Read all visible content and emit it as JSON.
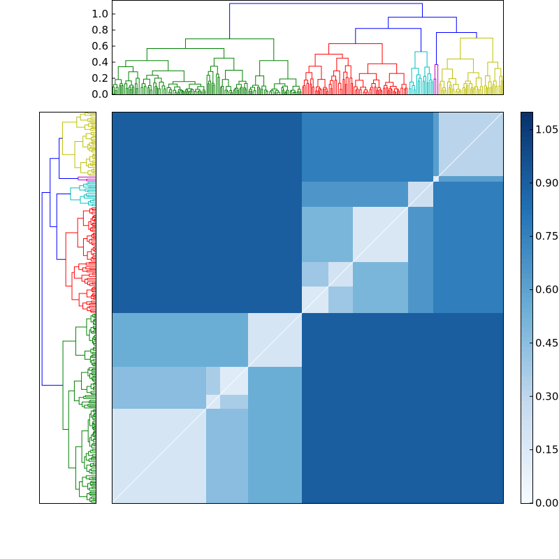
{
  "chart_data": {
    "type": "heatmap",
    "title": "",
    "description_kind": "clustered distance matrix with row and column dendrograms",
    "top_dendrogram": {
      "yticks": [
        "0.0",
        "0.2",
        "0.4",
        "0.6",
        "0.8",
        "1.0"
      ],
      "ylim": [
        0,
        1.17
      ]
    },
    "colorbar": {
      "ticks": [
        "0.00",
        "0.15",
        "0.30",
        "0.45",
        "0.60",
        "0.75",
        "0.90",
        "1.05"
      ],
      "range": [
        0,
        1.1
      ],
      "colormap": [
        "#f7fbff",
        "#c6dbef",
        "#6baed6",
        "#2171b5",
        "#08306b"
      ]
    },
    "link_color_above_threshold": "#0000ff",
    "clusters": [
      {
        "id": "A",
        "leaves": 135,
        "color": "#008000",
        "internal_height": 0.42
      },
      {
        "id": "B",
        "leaves": 20,
        "color": "#008000",
        "internal_height": 0.35
      },
      {
        "id": "C",
        "leaves": 40,
        "color": "#008000",
        "internal_height": 0.3
      },
      {
        "id": "D",
        "leaves": 77,
        "color": "#008000",
        "internal_height": 0.42
      },
      {
        "id": "E",
        "leaves": 38,
        "color": "#ff0000",
        "internal_height": 0.35
      },
      {
        "id": "F",
        "leaves": 35,
        "color": "#ff0000",
        "internal_height": 0.45
      },
      {
        "id": "H",
        "leaves": 79,
        "color": "#ff0000",
        "internal_height": 0.38
      },
      {
        "id": "I",
        "leaves": 36,
        "color": "#00bfbf",
        "internal_height": 0.53
      },
      {
        "id": "J",
        "leaves": 8,
        "color": "#bf00bf",
        "internal_height": 0.37
      },
      {
        "id": "K",
        "leaves": 92,
        "color": "#bfbf00",
        "internal_height": 0.7
      }
    ],
    "tree": {
      "h": 1.13,
      "c": [
        {
          "h": 0.69,
          "c": [
            {
              "h": 0.57,
              "c": [
                {
                  "leaf": "A"
                },
                {
                  "h": 0.45,
                  "c": [
                    {
                      "leaf": "B"
                    },
                    {
                      "leaf": "C"
                    }
                  ]
                }
              ]
            },
            {
              "leaf": "D"
            }
          ]
        },
        {
          "h": 0.96,
          "c": [
            {
              "h": 0.82,
              "c": [
                {
                  "h": 0.63,
                  "c": [
                    {
                      "h": 0.5,
                      "c": [
                        {
                          "leaf": "E"
                        },
                        {
                          "leaf": "F"
                        }
                      ]
                    },
                    {
                      "leaf": "H"
                    }
                  ]
                },
                {
                  "leaf": "I"
                }
              ]
            },
            {
              "h": 0.77,
              "c": [
                {
                  "leaf": "J"
                },
                {
                  "leaf": "K"
                }
              ]
            }
          ]
        }
      ]
    }
  }
}
